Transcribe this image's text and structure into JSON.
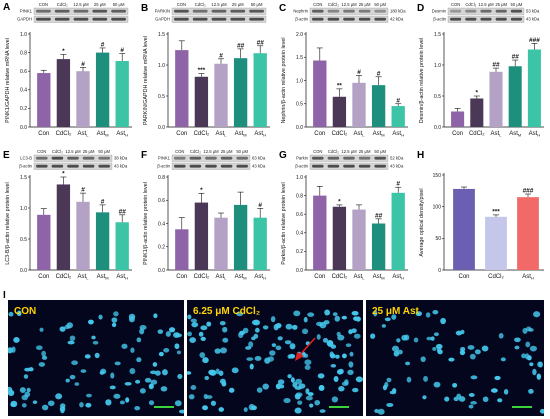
{
  "colors": {
    "con": "#8e63a8",
    "cdcl2": "#4a3856",
    "astL": "#b4a2c6",
    "astM": "#1e8f7c",
    "astH": "#3bc4a6",
    "h_con": "#6a5fb0",
    "h_cdcl2": "#c4c6ea",
    "h_ast": "#f26a68",
    "cell": "#44c8ec"
  },
  "chart_data": [
    {
      "id": "A",
      "type": "bar",
      "blots": [
        "PINK1",
        "GAPDH"
      ],
      "blot_sizes": [],
      "columns": [
        "CON",
        "CdCl₂",
        "12.5 μM",
        "25 μM",
        "50 μM"
      ],
      "categories": [
        "Con",
        "CdCl₂",
        "Ast_L",
        "Ast_M",
        "Ast_H"
      ],
      "ylabel": "PINK1/GAPDH relative mRNA level",
      "ylim": [
        0,
        1.0
      ],
      "yticks": [
        "0.0",
        "0.2",
        "0.4",
        "0.6",
        "0.8",
        "1.0"
      ],
      "values": [
        0.58,
        0.73,
        0.6,
        0.8,
        0.71
      ],
      "errors": [
        0.03,
        0.05,
        0.04,
        0.05,
        0.08
      ],
      "sig": [
        "",
        "*",
        "#",
        "#",
        "#"
      ]
    },
    {
      "id": "B",
      "type": "bar",
      "blots": [
        "PARKIN",
        "GAPDH"
      ],
      "blot_sizes": [],
      "columns": [
        "CON",
        "CdCl₂",
        "12.5 μM",
        "25 μM",
        "50 μM"
      ],
      "categories": [
        "Con",
        "CdCl₂",
        "Ast_L",
        "Ast_M",
        "Ast_H"
      ],
      "ylabel": "PARKIN/GAPDH relative mRNA level",
      "ylim": [
        0,
        1.5
      ],
      "yticks": [
        "0.0",
        "0.5",
        "1.0",
        "1.5"
      ],
      "values": [
        1.24,
        0.81,
        1.02,
        1.11,
        1.19
      ],
      "errors": [
        0.15,
        0.05,
        0.08,
        0.15,
        0.12
      ],
      "sig": [
        "",
        "***",
        "#",
        "##",
        "##"
      ]
    },
    {
      "id": "C",
      "type": "bar",
      "blots": [
        "Nephrin",
        "β-actin"
      ],
      "blot_sizes": [
        "180 kDa",
        "42 kDa"
      ],
      "columns": [
        "CON",
        "CdCl₂",
        "12.5 μM",
        "25 μM",
        "50 μM"
      ],
      "categories": [
        "Con",
        "CdCl₂",
        "Ast_L",
        "Ast_M",
        "Ast_H"
      ],
      "ylabel": "Nephrin/β-actin relative protein level",
      "ylim": [
        0,
        2.0
      ],
      "yticks": [
        "0.0",
        "0.5",
        "1.0",
        "1.5",
        "2.0"
      ],
      "values": [
        1.43,
        0.65,
        0.95,
        0.9,
        0.45
      ],
      "errors": [
        0.27,
        0.17,
        0.16,
        0.18,
        0.05
      ],
      "sig": [
        "",
        "**",
        "#",
        "#",
        "#"
      ]
    },
    {
      "id": "D",
      "type": "bar",
      "blots": [
        "Desmin",
        "β-actin"
      ],
      "blot_sizes": [
        "53 kDa",
        "43 kDa"
      ],
      "columns": [
        "CON",
        "CdCl₂",
        "12.5 μM",
        "25 μM",
        "50 μM"
      ],
      "categories": [
        "Con",
        "CdCl₂",
        "Ast_L",
        "Ast_M",
        "Ast_H"
      ],
      "ylabel": "Desmin/β-actin relative protein level",
      "ylim": [
        0,
        1.5
      ],
      "yticks": [
        "0.0",
        "0.5",
        "1.0",
        "1.5"
      ],
      "values": [
        0.25,
        0.46,
        0.89,
        0.98,
        1.25
      ],
      "errors": [
        0.05,
        0.04,
        0.06,
        0.1,
        0.1
      ],
      "sig": [
        "",
        "*",
        "##",
        "##",
        "###"
      ]
    },
    {
      "id": "E",
      "type": "bar",
      "blots": [
        "LC3-B",
        "β-actin"
      ],
      "blot_sizes": [
        "38 kDa",
        "43 kDa"
      ],
      "columns": [
        "CON",
        "CdCl₂",
        "12.5 μM",
        "25 μM",
        "50 μM"
      ],
      "categories": [
        "Con",
        "CdCl₂",
        "Ast_L",
        "Ast_M",
        "Ast_H"
      ],
      "ylabel": "LC3-B/β-actin relative protein level",
      "ylim": [
        0,
        1.5
      ],
      "yticks": [
        "0.0",
        "0.5",
        "1.0",
        "1.5"
      ],
      "values": [
        0.89,
        1.38,
        1.1,
        0.93,
        0.77
      ],
      "errors": [
        0.1,
        0.12,
        0.14,
        0.12,
        0.12
      ],
      "sig": [
        "",
        "*",
        "#",
        "#",
        "##"
      ]
    },
    {
      "id": "F",
      "type": "bar",
      "blots": [
        "PINK1",
        "β-actin"
      ],
      "blot_sizes": [
        "63 kDa",
        "43 kDa"
      ],
      "columns": [
        "CON",
        "CdCl₂",
        "12.5 μM",
        "25 μM",
        "50 μM"
      ],
      "categories": [
        "Con",
        "CdCl₂",
        "Ast_L",
        "Ast_M",
        "Ast_H"
      ],
      "ylabel": "PINK1/β-actin relative protein level",
      "ylim": [
        0,
        0.8
      ],
      "yticks": [
        "0.0",
        "0.2",
        "0.4",
        "0.6",
        "0.8"
      ],
      "values": [
        0.35,
        0.58,
        0.45,
        0.56,
        0.45
      ],
      "errors": [
        0.1,
        0.08,
        0.04,
        0.11,
        0.08
      ],
      "sig": [
        "",
        "*",
        "",
        "",
        "#"
      ]
    },
    {
      "id": "G",
      "type": "bar",
      "blots": [
        "Parkin",
        "β-actin"
      ],
      "blot_sizes": [
        "52 kDa",
        "43 kDa"
      ],
      "columns": [
        "CON",
        "CdCl₂",
        "12.5 μM",
        "25 μM",
        "50 μM"
      ],
      "categories": [
        "Con",
        "CdCl₂",
        "Ast_L",
        "Ast_M",
        "Ast_H"
      ],
      "ylabel": "Parkin/β-actin relative protein level",
      "ylim": [
        0,
        1.0
      ],
      "yticks": [
        "0.0",
        "0.2",
        "0.4",
        "0.6",
        "0.8",
        "1.0"
      ],
      "values": [
        0.8,
        0.68,
        0.65,
        0.5,
        0.83
      ],
      "errors": [
        0.1,
        0.02,
        0.05,
        0.05,
        0.06
      ],
      "sig": [
        "",
        "*",
        "",
        "##",
        "#"
      ]
    },
    {
      "id": "H",
      "type": "bar",
      "blots": [],
      "blot_sizes": [],
      "columns": [],
      "categories": [
        "Con",
        "CdCl₂",
        "Ast_H"
      ],
      "ylabel": "Average optical density/pixel",
      "ylim": [
        0,
        150
      ],
      "yticks": [
        "0",
        "50",
        "100",
        "150"
      ],
      "values": [
        128,
        84,
        115
      ],
      "errors": [
        3,
        3,
        5
      ],
      "sig": [
        "",
        "***",
        "###"
      ]
    }
  ],
  "images": [
    {
      "label": "CON",
      "seed": 11,
      "count": 95
    },
    {
      "label": "6.25 μM CdCl₂",
      "seed": 29,
      "count": 140
    },
    {
      "label": "25 μM Ast",
      "seed": 47,
      "count": 80
    }
  ],
  "panel_I_label": "I"
}
